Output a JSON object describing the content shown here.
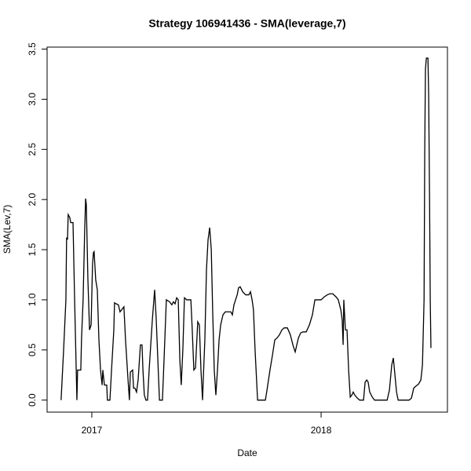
{
  "chart_data": {
    "type": "line",
    "title": "Strategy 106941436 - SMA(leverage,7)",
    "x_label": "Date",
    "y_label": "SMA(Lev,7)",
    "x": [
      2016.866,
      2016.877,
      2016.887,
      2016.89,
      2016.894,
      2016.897,
      2016.904,
      2016.908,
      2016.918,
      2016.925,
      2016.932,
      2016.935,
      2016.938,
      2016.952,
      2016.955,
      2016.962,
      2016.969,
      2016.973,
      2016.976,
      2016.983,
      2016.99,
      2016.997,
      2017.003,
      2017.007,
      2017.01,
      2017.017,
      2017.024,
      2017.031,
      2017.038,
      2017.045,
      2017.048,
      2017.055,
      2017.065,
      2017.068,
      2017.079,
      2017.086,
      2017.096,
      2017.099,
      2017.106,
      2017.116,
      2017.123,
      2017.13,
      2017.14,
      2017.147,
      2017.158,
      2017.164,
      2017.168,
      2017.178,
      2017.182,
      2017.188,
      2017.195,
      2017.202,
      2017.212,
      2017.219,
      2017.223,
      2017.229,
      2017.236,
      2017.243,
      2017.25,
      2017.264,
      2017.274,
      2017.281,
      2017.288,
      2017.295,
      2017.308,
      2017.315,
      2017.325,
      2017.339,
      2017.349,
      2017.356,
      2017.363,
      2017.37,
      2017.377,
      2017.384,
      2017.39,
      2017.397,
      2017.404,
      2017.414,
      2017.425,
      2017.432,
      2017.438,
      2017.445,
      2017.452,
      2017.462,
      2017.469,
      2017.476,
      2017.483,
      2017.486,
      2017.493,
      2017.5,
      2017.507,
      2017.514,
      2017.521,
      2017.527,
      2017.534,
      2017.541,
      2017.548,
      2017.555,
      2017.562,
      2017.572,
      2017.582,
      2017.592,
      2017.606,
      2017.613,
      2017.62,
      2017.634,
      2017.64,
      2017.647,
      2017.658,
      2017.671,
      2017.685,
      2017.692,
      2017.699,
      2017.705,
      2017.712,
      2017.723,
      2017.733,
      2017.757,
      2017.764,
      2017.777,
      2017.788,
      2017.798,
      2017.808,
      2017.818,
      2017.829,
      2017.839,
      2017.853,
      2017.866,
      2017.877,
      2017.887,
      2017.894,
      2017.901,
      2017.911,
      2017.921,
      2017.935,
      2017.949,
      2017.962,
      2017.973,
      2017.986,
      2018.0,
      2018.014,
      2018.027,
      2018.038,
      2018.051,
      2018.065,
      2018.075,
      2018.086,
      2018.092,
      2018.096,
      2018.099,
      2018.106,
      2018.113,
      2018.12,
      2018.127,
      2018.134,
      2018.14,
      2018.147,
      2018.158,
      2018.168,
      2018.185,
      2018.192,
      2018.199,
      2018.205,
      2018.212,
      2018.223,
      2018.233,
      2018.288,
      2018.298,
      2018.308,
      2018.315,
      2018.322,
      2018.329,
      2018.336,
      2018.384,
      2018.394,
      2018.404,
      2018.414,
      2018.425,
      2018.435,
      2018.442,
      2018.449,
      2018.452,
      2018.455,
      2018.459,
      2018.466,
      2018.469,
      2018.473,
      2018.476,
      2018.479
    ],
    "values": [
      0,
      0.5,
      1.0,
      1.62,
      1.6,
      1.85,
      1.82,
      1.77,
      1.77,
      1.0,
      0.3,
      0,
      0.3,
      0.3,
      0.6,
      1.0,
      1.7,
      2.01,
      1.95,
      1.2,
      0.7,
      0.75,
      1.35,
      1.47,
      1.48,
      1.2,
      1.1,
      0.6,
      0.3,
      0.15,
      0.3,
      0.15,
      0.15,
      0,
      0,
      0.3,
      0.7,
      0.97,
      0.96,
      0.95,
      0.88,
      0.9,
      0.93,
      0.6,
      0.2,
      0,
      0.28,
      0.3,
      0.12,
      0.12,
      0.08,
      0.2,
      0.55,
      0.55,
      0.3,
      0.05,
      0,
      0,
      0.3,
      0.8,
      1.1,
      0.8,
      0.4,
      0,
      0,
      0.4,
      1.0,
      0.98,
      0.95,
      0.98,
      0.96,
      1.02,
      1.0,
      0.4,
      0.15,
      0.5,
      1.02,
      1.0,
      1.0,
      1.0,
      0.7,
      0.3,
      0.32,
      0.78,
      0.75,
      0.3,
      0,
      0.2,
      0.6,
      1.3,
      1.6,
      1.72,
      1.5,
      0.9,
      0.3,
      0.05,
      0.3,
      0.6,
      0.75,
      0.85,
      0.88,
      0.88,
      0.88,
      0.85,
      0.95,
      1.05,
      1.12,
      1.13,
      1.08,
      1.05,
      1.05,
      1.08,
      1.0,
      0.9,
      0.5,
      0,
      0,
      0,
      0.1,
      0.3,
      0.45,
      0.6,
      0.62,
      0.65,
      0.7,
      0.72,
      0.72,
      0.65,
      0.55,
      0.48,
      0.55,
      0.62,
      0.67,
      0.68,
      0.68,
      0.75,
      0.85,
      1.0,
      1.0,
      1.0,
      1.03,
      1.05,
      1.06,
      1.06,
      1.03,
      1.0,
      0.9,
      0.8,
      0.55,
      1.0,
      0.7,
      0.7,
      0.3,
      0.03,
      0.05,
      0.08,
      0.05,
      0.02,
      0,
      0,
      0.18,
      0.2,
      0.18,
      0.08,
      0.03,
      0,
      0,
      0.1,
      0.35,
      0.42,
      0.25,
      0.08,
      0,
      0,
      0.02,
      0.12,
      0.14,
      0.16,
      0.2,
      0.35,
      1.0,
      2.5,
      3.3,
      3.41,
      3.41,
      3.05,
      2.0,
      1.0,
      0.52
    ],
    "color": "#000000",
    "xlim": [
      2016.805,
      2018.551
    ],
    "xticks": [
      2017,
      2018
    ],
    "ylim": [
      -0.12,
      3.52
    ],
    "yticks": [
      {
        "value": 0,
        "label": "0.0"
      },
      0.5,
      {
        "value": 1,
        "label": "1.0"
      },
      1.5,
      {
        "value": 2,
        "label": "2.0"
      },
      2.5,
      {
        "value": 3,
        "label": "3.0"
      },
      3.5
    ],
    "grid": false
  }
}
